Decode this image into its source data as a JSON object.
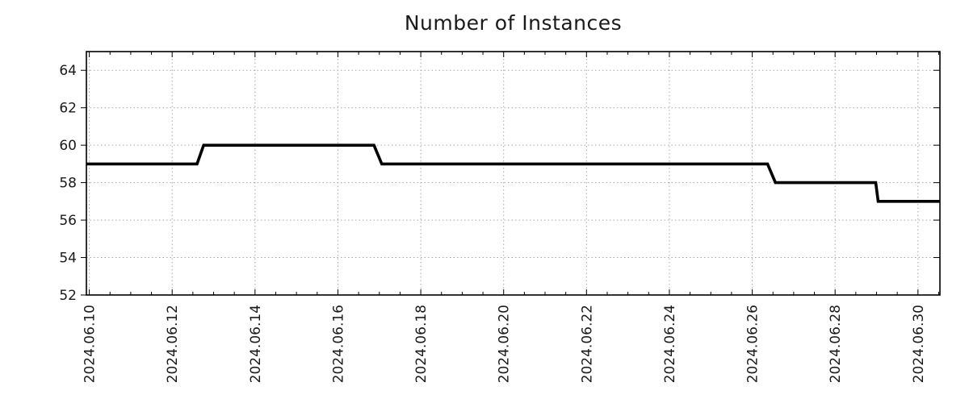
{
  "title": "Number of Instances",
  "colors": {
    "background": "#ffffff",
    "line": "#000000",
    "grid": "#a6a6a6",
    "border": "#000000",
    "text": "#1a1a1a"
  },
  "chart_data": {
    "type": "line",
    "subtype": "step",
    "title": "Number of Instances",
    "xlabel": "",
    "ylabel": "",
    "grid": true,
    "legend": null,
    "x_axis_note": "days offset from 2024.06.10, major gridline every 2 days, minor tick every 0.5 day",
    "xlim": [
      -0.07,
      20.53
    ],
    "ylim": [
      52,
      65
    ],
    "y_ticks": [
      52,
      54,
      56,
      58,
      60,
      62,
      64
    ],
    "x_minor_step": 0.5,
    "x_ticks": [
      {
        "d": 0,
        "label": "2024.06.10"
      },
      {
        "d": 2,
        "label": "2024.06.12"
      },
      {
        "d": 4,
        "label": "2024.06.14"
      },
      {
        "d": 6,
        "label": "2024.06.16"
      },
      {
        "d": 8,
        "label": "2024.06.18"
      },
      {
        "d": 10,
        "label": "2024.06.20"
      },
      {
        "d": 12,
        "label": "2024.06.22"
      },
      {
        "d": 14,
        "label": "2024.06.24"
      },
      {
        "d": 16,
        "label": "2024.06.26"
      },
      {
        "d": 18,
        "label": "2024.06.28"
      },
      {
        "d": 20,
        "label": "2024.06.30"
      }
    ],
    "series": [
      {
        "name": "instances",
        "color": "#000000",
        "stroke_width": 3.6,
        "points": [
          [
            -0.07,
            59
          ],
          [
            2.6,
            59
          ],
          [
            2.76,
            60
          ],
          [
            6.87,
            60
          ],
          [
            7.06,
            59
          ],
          [
            16.37,
            59
          ],
          [
            16.56,
            58
          ],
          [
            18.98,
            58
          ],
          [
            19.04,
            57
          ],
          [
            20.53,
            57
          ]
        ]
      }
    ]
  }
}
